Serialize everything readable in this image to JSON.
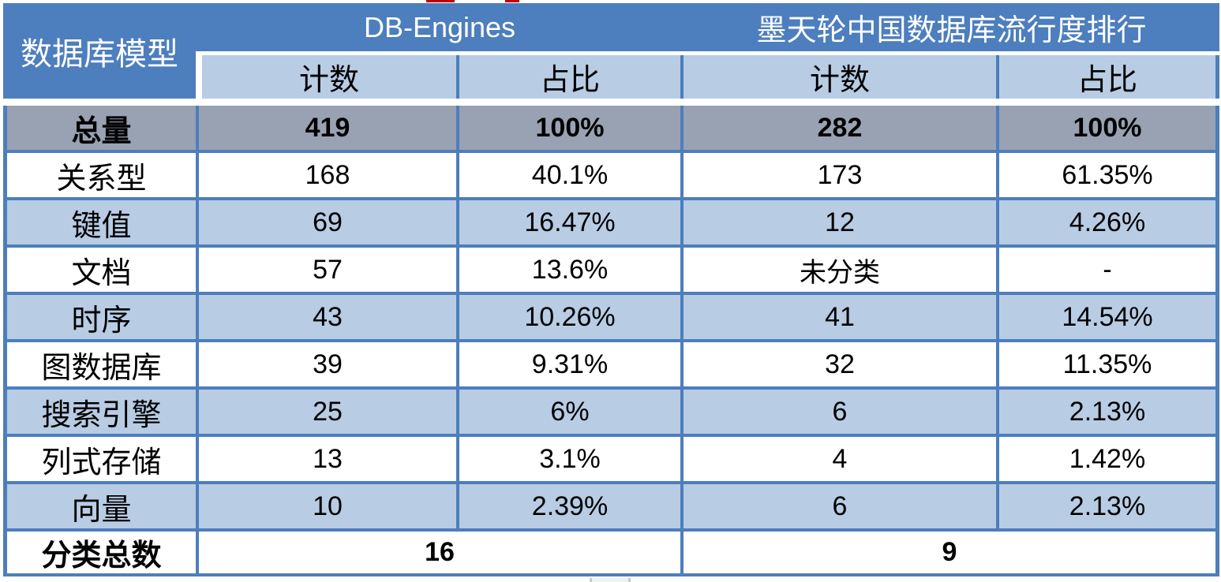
{
  "chart_data": {
    "type": "table",
    "corner": "数据库模型",
    "groups": [
      {
        "title": "DB-Engines",
        "subheaders": [
          "计数",
          "占比"
        ]
      },
      {
        "title": "墨天轮中国数据库流行度排行",
        "subheaders": [
          "计数",
          "占比"
        ]
      }
    ],
    "rows": [
      {
        "label": "总量",
        "c1": "419",
        "c2": "100%",
        "c3": "282",
        "c4": "100%",
        "emphasis": true
      },
      {
        "label": "关系型",
        "c1": "168",
        "c2": "40.1%",
        "c3": "173",
        "c4": "61.35%"
      },
      {
        "label": "键值",
        "c1": "69",
        "c2": "16.47%",
        "c3": "12",
        "c4": "4.26%"
      },
      {
        "label": "文档",
        "c1": "57",
        "c2": "13.6%",
        "c3": "未分类",
        "c4": "-"
      },
      {
        "label": "时序",
        "c1": "43",
        "c2": "10.26%",
        "c3": "41",
        "c4": "14.54%"
      },
      {
        "label": "图数据库",
        "c1": "39",
        "c2": "9.31%",
        "c3": "32",
        "c4": "11.35%"
      },
      {
        "label": "搜索引擎",
        "c1": "25",
        "c2": "6%",
        "c3": "6",
        "c4": "2.13%"
      },
      {
        "label": "列式存储",
        "c1": "13",
        "c2": "3.1%",
        "c3": "4",
        "c4": "1.42%"
      },
      {
        "label": "向量",
        "c1": "10",
        "c2": "2.39%",
        "c3": "6",
        "c4": "2.13%"
      }
    ],
    "footer": {
      "label": "分类总数",
      "db_engines_total": "16",
      "motianlun_total": "9"
    },
    "layout": {
      "grid": "on",
      "legend": "none"
    }
  },
  "colors": {
    "header_blue": "#4d7ebd",
    "band_light_blue": "#b8cce4",
    "total_row_gray": "#98a2b3",
    "border_blue": "#4d7ebd",
    "header_text": "#ffffff",
    "body_text": "#000000",
    "red_mark": "#c00000"
  }
}
